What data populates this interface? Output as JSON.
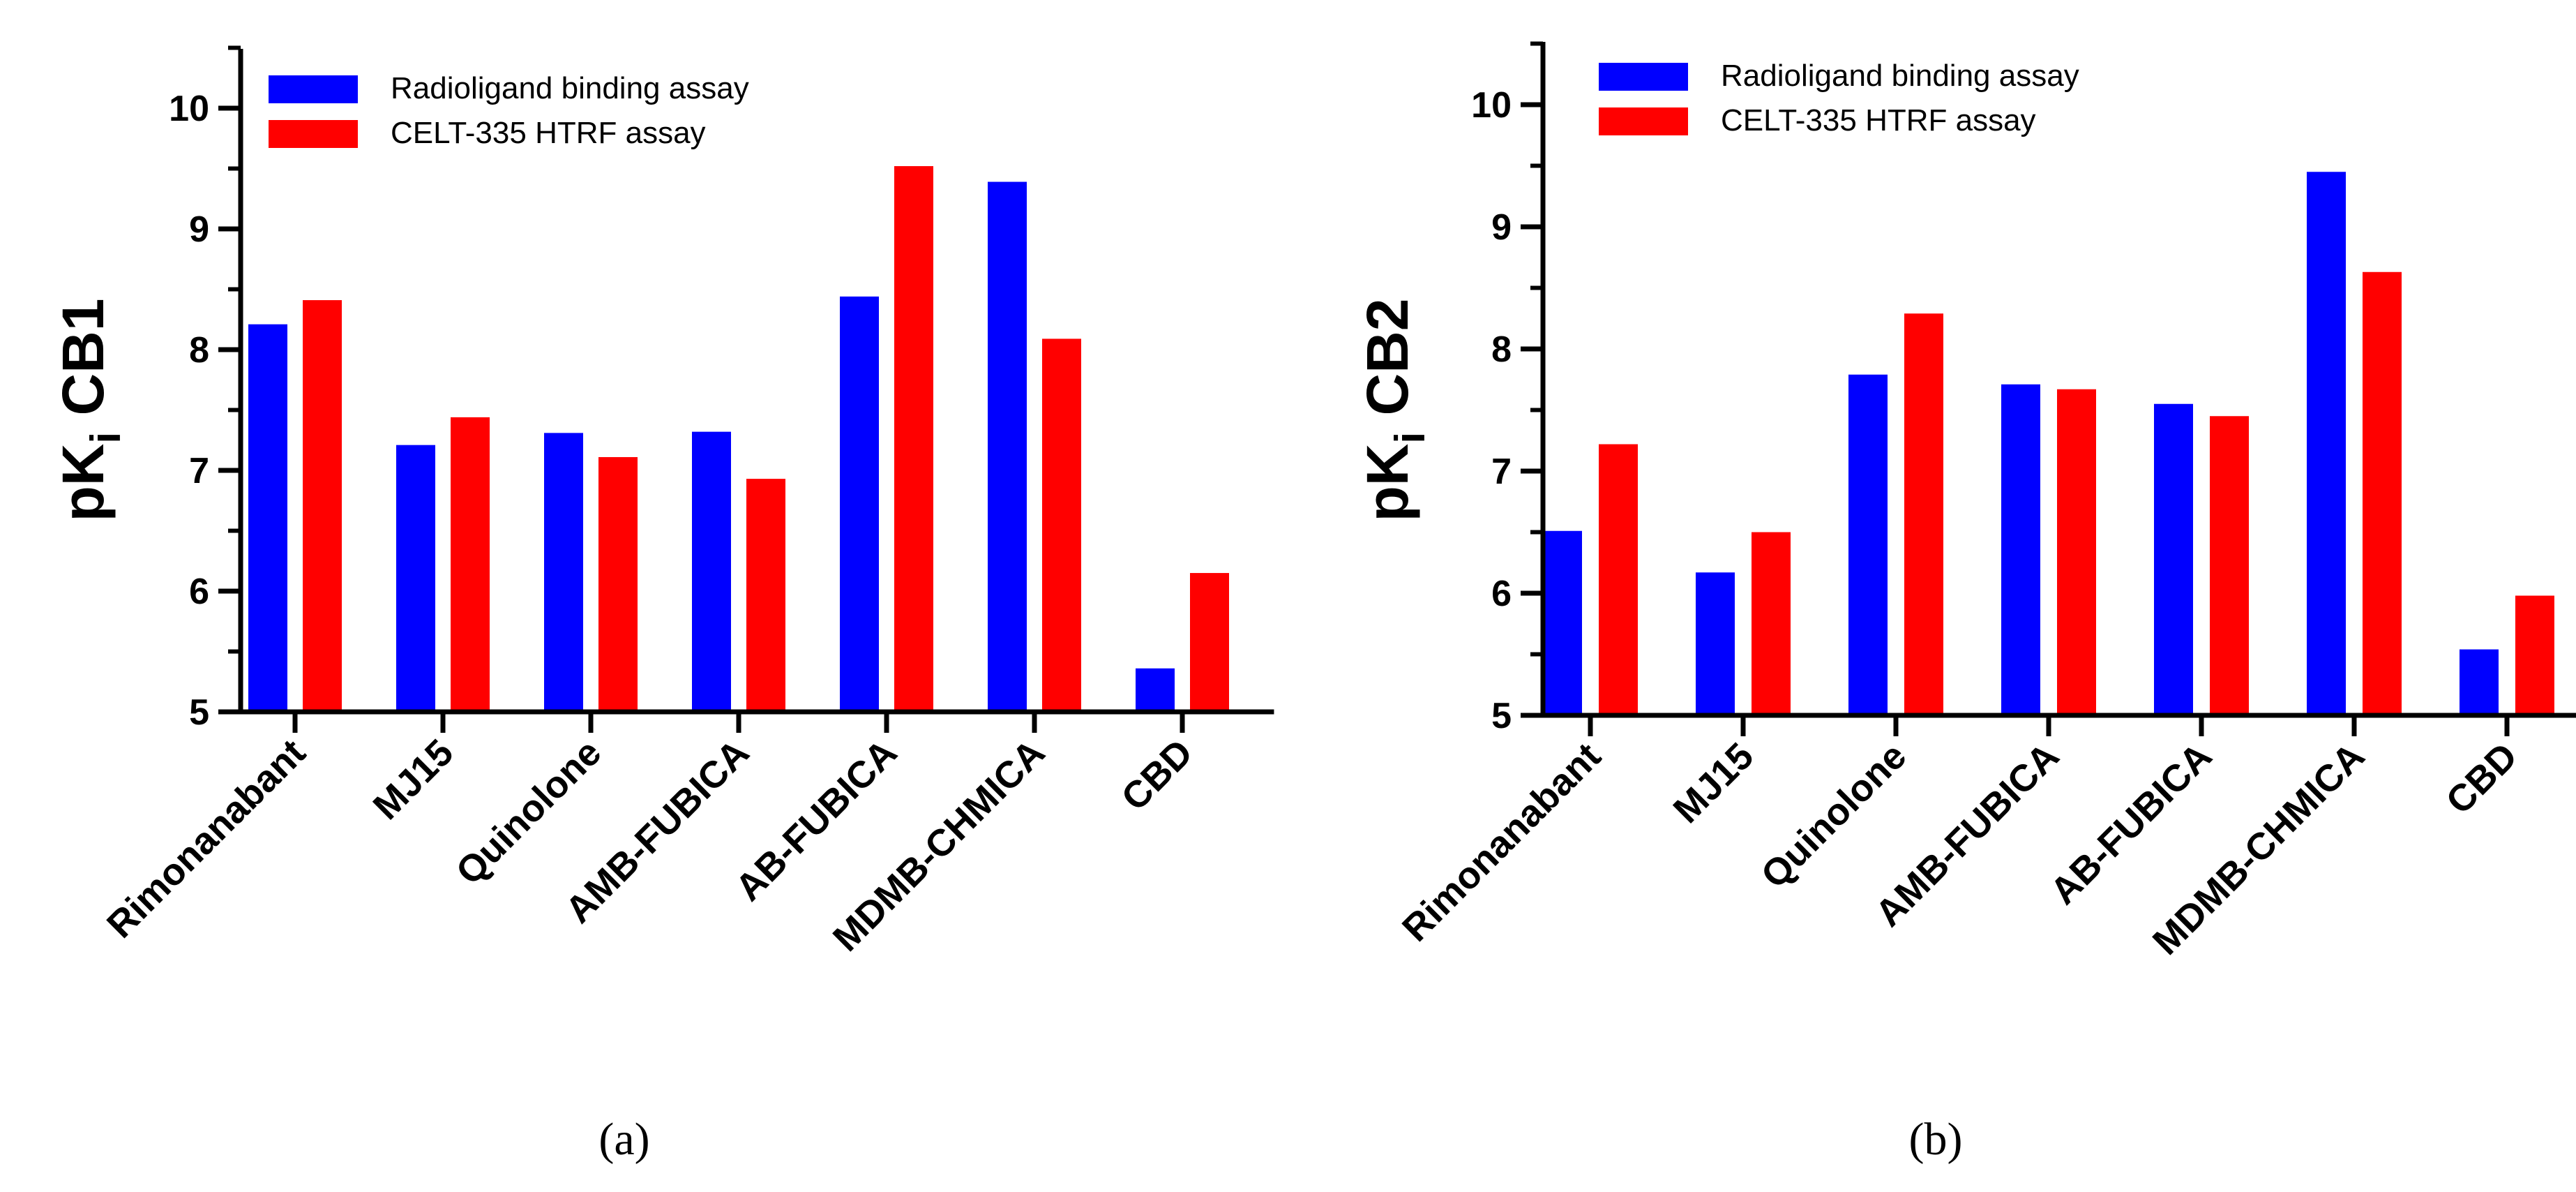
{
  "series_colors": {
    "radioligand": "#0000ff",
    "htrf": "#ff0000"
  },
  "chart_data": [
    {
      "type": "bar",
      "panel_label": "(a)",
      "ylabel_main": "pK",
      "ylabel_sub": "i",
      "ylabel_rest": " CB1",
      "ylim": [
        5,
        10.5
      ],
      "yticks": [
        "5",
        "6",
        "7",
        "8",
        "9",
        "10"
      ],
      "legend_position": "top-left",
      "categories": [
        "Rimonanabant",
        "MJ15",
        "Quinolone",
        "AMB-FUBICA",
        "AB-FUBICA",
        "MDMB-CHMICA",
        "CBD"
      ],
      "series": [
        {
          "name": "Radioligand binding assay",
          "color": "#0000ff",
          "values": [
            8.21,
            7.21,
            7.31,
            7.32,
            8.44,
            9.39,
            5.36
          ]
        },
        {
          "name": "CELT-335 HTRF assay",
          "color": "#ff0000",
          "values": [
            8.41,
            7.44,
            7.11,
            6.93,
            9.52,
            8.09,
            6.15
          ]
        }
      ]
    },
    {
      "type": "bar",
      "panel_label": "(b)",
      "ylabel_main": "pK",
      "ylabel_sub": "i",
      "ylabel_rest": " CB2",
      "ylim": [
        5,
        10.5
      ],
      "yticks": [
        "5",
        "6",
        "7",
        "8",
        "9",
        "10"
      ],
      "legend_position": "top-left",
      "categories": [
        "Rimonanabant",
        "MJ15",
        "Quinolone",
        "AMB-FUBICA",
        "AB-FUBICA",
        "MDMB-CHMICA",
        "CBD"
      ],
      "series": [
        {
          "name": "Radioligand binding assay",
          "color": "#0000ff",
          "values": [
            6.51,
            6.17,
            7.79,
            7.71,
            7.55,
            9.45,
            5.54
          ]
        },
        {
          "name": "CELT-335 HTRF assay",
          "color": "#ff0000",
          "values": [
            7.22,
            6.5,
            8.29,
            7.67,
            7.45,
            8.63,
            5.98
          ]
        }
      ]
    }
  ]
}
